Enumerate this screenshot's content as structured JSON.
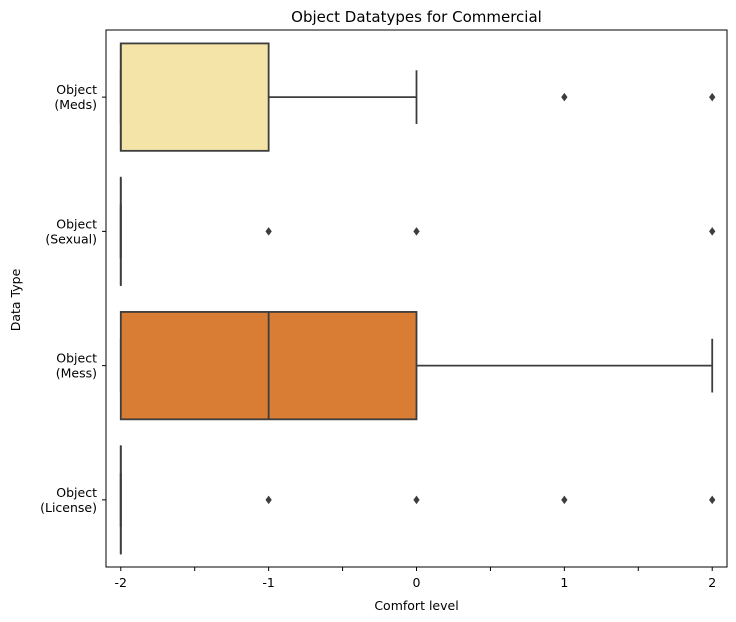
{
  "chart_data": {
    "type": "boxplot",
    "orientation": "horizontal",
    "title": "Object Datatypes for Commercial",
    "xlabel": "Comfort level",
    "ylabel": "Data Type",
    "xlim": [
      -2.1,
      2.1
    ],
    "x_ticks": [
      -2,
      -1.5,
      -1,
      -0.5,
      0,
      0.5,
      1,
      1.5,
      2
    ],
    "x_tick_labels": [
      "-2",
      "",
      "-1",
      "",
      "0",
      "",
      "1",
      "",
      "2"
    ],
    "grid": false,
    "categories": [
      {
        "label_lines": [
          "Object",
          "(Meds)"
        ],
        "whisker_low": -2,
        "q1": -2,
        "median": -2,
        "q3": -1,
        "whisker_high": 0,
        "outliers": [
          1,
          2
        ],
        "color": "#f4e4a7"
      },
      {
        "label_lines": [
          "Object",
          "(Sexual)"
        ],
        "whisker_low": -2,
        "q1": -2,
        "median": -2,
        "q3": -2,
        "whisker_high": -2,
        "outliers": [
          -1,
          0,
          2
        ],
        "color": "#f2b56a"
      },
      {
        "label_lines": [
          "Object",
          "(Mess)"
        ],
        "whisker_low": -2,
        "q1": -2,
        "median": -1,
        "q3": 0,
        "whisker_high": 2,
        "outliers": [],
        "color": "#d97d35"
      },
      {
        "label_lines": [
          "Object",
          "(License)"
        ],
        "whisker_low": -2,
        "q1": -2,
        "median": -2,
        "q3": -2,
        "whisker_high": -2,
        "outliers": [
          -1,
          0,
          1,
          2
        ],
        "color": "#a85a2a"
      }
    ],
    "line_color": "#3d3d3d",
    "outlier_color": "#3d3d3d"
  }
}
